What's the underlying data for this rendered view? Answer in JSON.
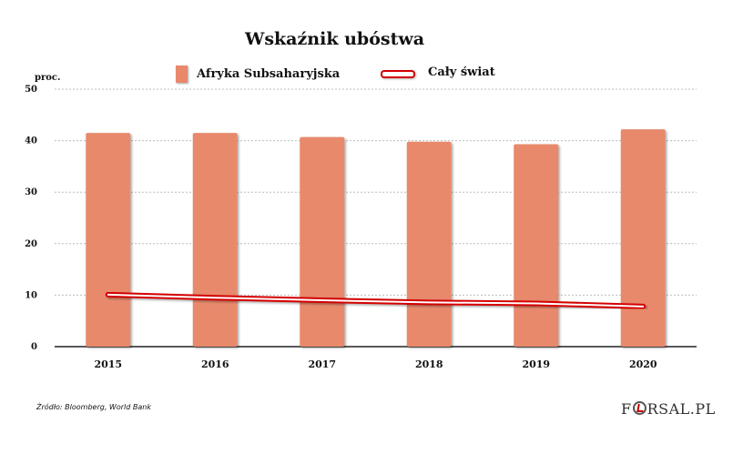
{
  "title": "Wskaźnik ubóstwa",
  "unit_label": "proc.",
  "legend": {
    "bar_label": "Afryka Subsaharyjska",
    "line_label": "Cały świat"
  },
  "source": "Źródło: Bloomberg, World Bank",
  "logo": {
    "prefix": "F",
    "suffix": "RSAL.PL"
  },
  "colors": {
    "bar": "#e8896c",
    "line": "#d40000",
    "grid": "#bdbdbd"
  },
  "chart_data": {
    "type": "bar",
    "categories": [
      "2015",
      "2016",
      "2017",
      "2018",
      "2019",
      "2020"
    ],
    "series": [
      {
        "name": "Afryka Subsaharyjska",
        "type": "bar",
        "values": [
          41.5,
          41.5,
          40.7,
          39.8,
          39.3,
          42.2
        ]
      },
      {
        "name": "Cały świat",
        "type": "line",
        "values": [
          10.1,
          9.5,
          9.0,
          8.6,
          8.4,
          7.8
        ]
      }
    ],
    "yticks": [
      0,
      10,
      20,
      30,
      40,
      50
    ],
    "ylim": [
      0,
      50
    ],
    "ylabel": "proc.",
    "grid": true,
    "legend_position": "top"
  }
}
